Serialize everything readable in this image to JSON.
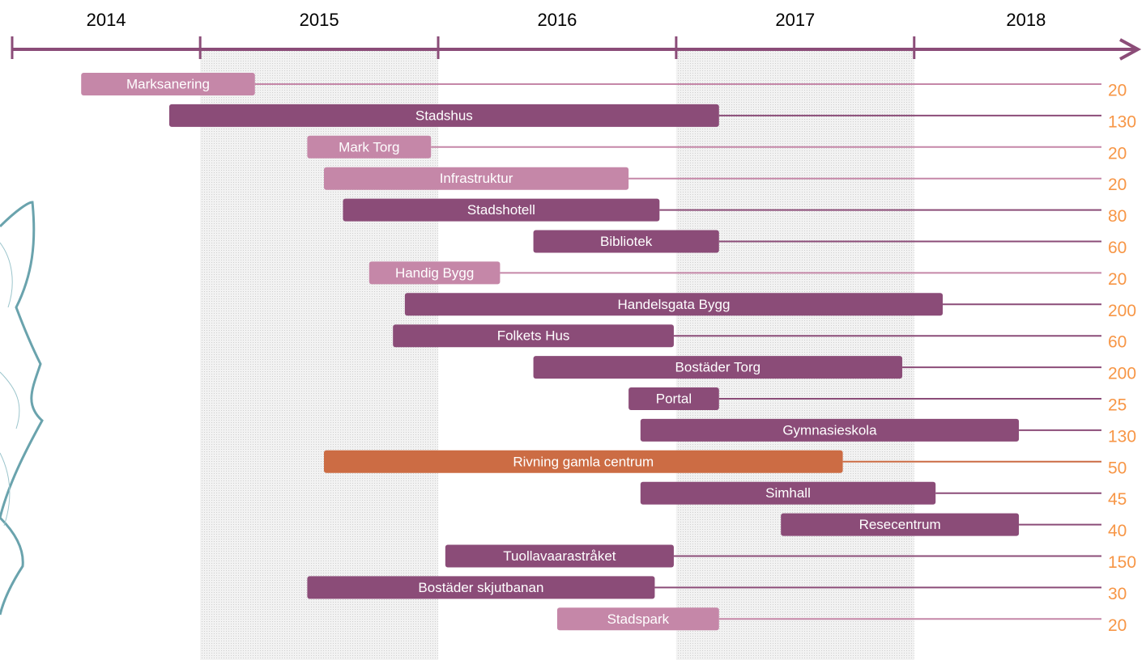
{
  "chart_data": {
    "type": "gantt",
    "xlim": [
      2014.21,
      2018.94
    ],
    "xticks": [
      2015,
      2016,
      2017,
      2018
    ],
    "categories": [
      "2014",
      "2015",
      "2016",
      "2017",
      "2018"
    ],
    "category_starts": [
      2014,
      2015,
      2016,
      2017,
      2018
    ],
    "shaded_years": [
      2015,
      2017
    ],
    "value_color": "#f79646",
    "tasks": [
      {
        "name": "Marksanering",
        "start": 2014.5,
        "end": 2015.23,
        "value": 20,
        "color": "#c587a8"
      },
      {
        "name": "Stadshus",
        "start": 2014.87,
        "end": 2017.18,
        "value": 130,
        "color": "#8b4c78"
      },
      {
        "name": "Mark Torg",
        "start": 2015.45,
        "end": 2015.97,
        "value": 20,
        "color": "#c587a8"
      },
      {
        "name": "Infrastruktur",
        "start": 2015.52,
        "end": 2016.8,
        "value": 20,
        "color": "#c587a8"
      },
      {
        "name": "Stadshotell",
        "start": 2015.6,
        "end": 2016.93,
        "value": 80,
        "color": "#8b4c78"
      },
      {
        "name": "Bibliotek",
        "start": 2016.4,
        "end": 2017.18,
        "value": 60,
        "color": "#8b4c78"
      },
      {
        "name": "Handig Bygg",
        "start": 2015.71,
        "end": 2016.26,
        "value": 20,
        "color": "#c587a8"
      },
      {
        "name": "Handelsgata Bygg",
        "start": 2015.86,
        "end": 2018.12,
        "value": 200,
        "color": "#8b4c78"
      },
      {
        "name": "Folkets Hus",
        "start": 2015.81,
        "end": 2016.99,
        "value": 60,
        "color": "#8b4c78"
      },
      {
        "name": "Bostäder Torg",
        "start": 2016.4,
        "end": 2017.95,
        "value": 200,
        "color": "#8b4c78"
      },
      {
        "name": "Portal",
        "start": 2016.8,
        "end": 2017.18,
        "value": 25,
        "color": "#8b4c78"
      },
      {
        "name": "Gymnasieskola",
        "start": 2016.85,
        "end": 2018.44,
        "value": 130,
        "color": "#8b4c78"
      },
      {
        "name": "Rivning gamla centrum",
        "start": 2015.52,
        "end": 2017.7,
        "value": 50,
        "color": "#cc6c44"
      },
      {
        "name": "Simhall",
        "start": 2016.85,
        "end": 2018.09,
        "value": 45,
        "color": "#8b4c78"
      },
      {
        "name": "Resecentrum",
        "start": 2017.44,
        "end": 2018.44,
        "value": 40,
        "color": "#8b4c78"
      },
      {
        "name": "Tuollavaarastråket",
        "start": 2016.03,
        "end": 2016.99,
        "value": 150,
        "color": "#8b4c78"
      },
      {
        "name": "Bostäder skjutbanan",
        "start": 2015.45,
        "end": 2016.91,
        "value": 30,
        "color": "#8b4c78"
      },
      {
        "name": "Stadspark",
        "start": 2016.5,
        "end": 2017.18,
        "value": 20,
        "color": "#c587a8"
      }
    ]
  }
}
